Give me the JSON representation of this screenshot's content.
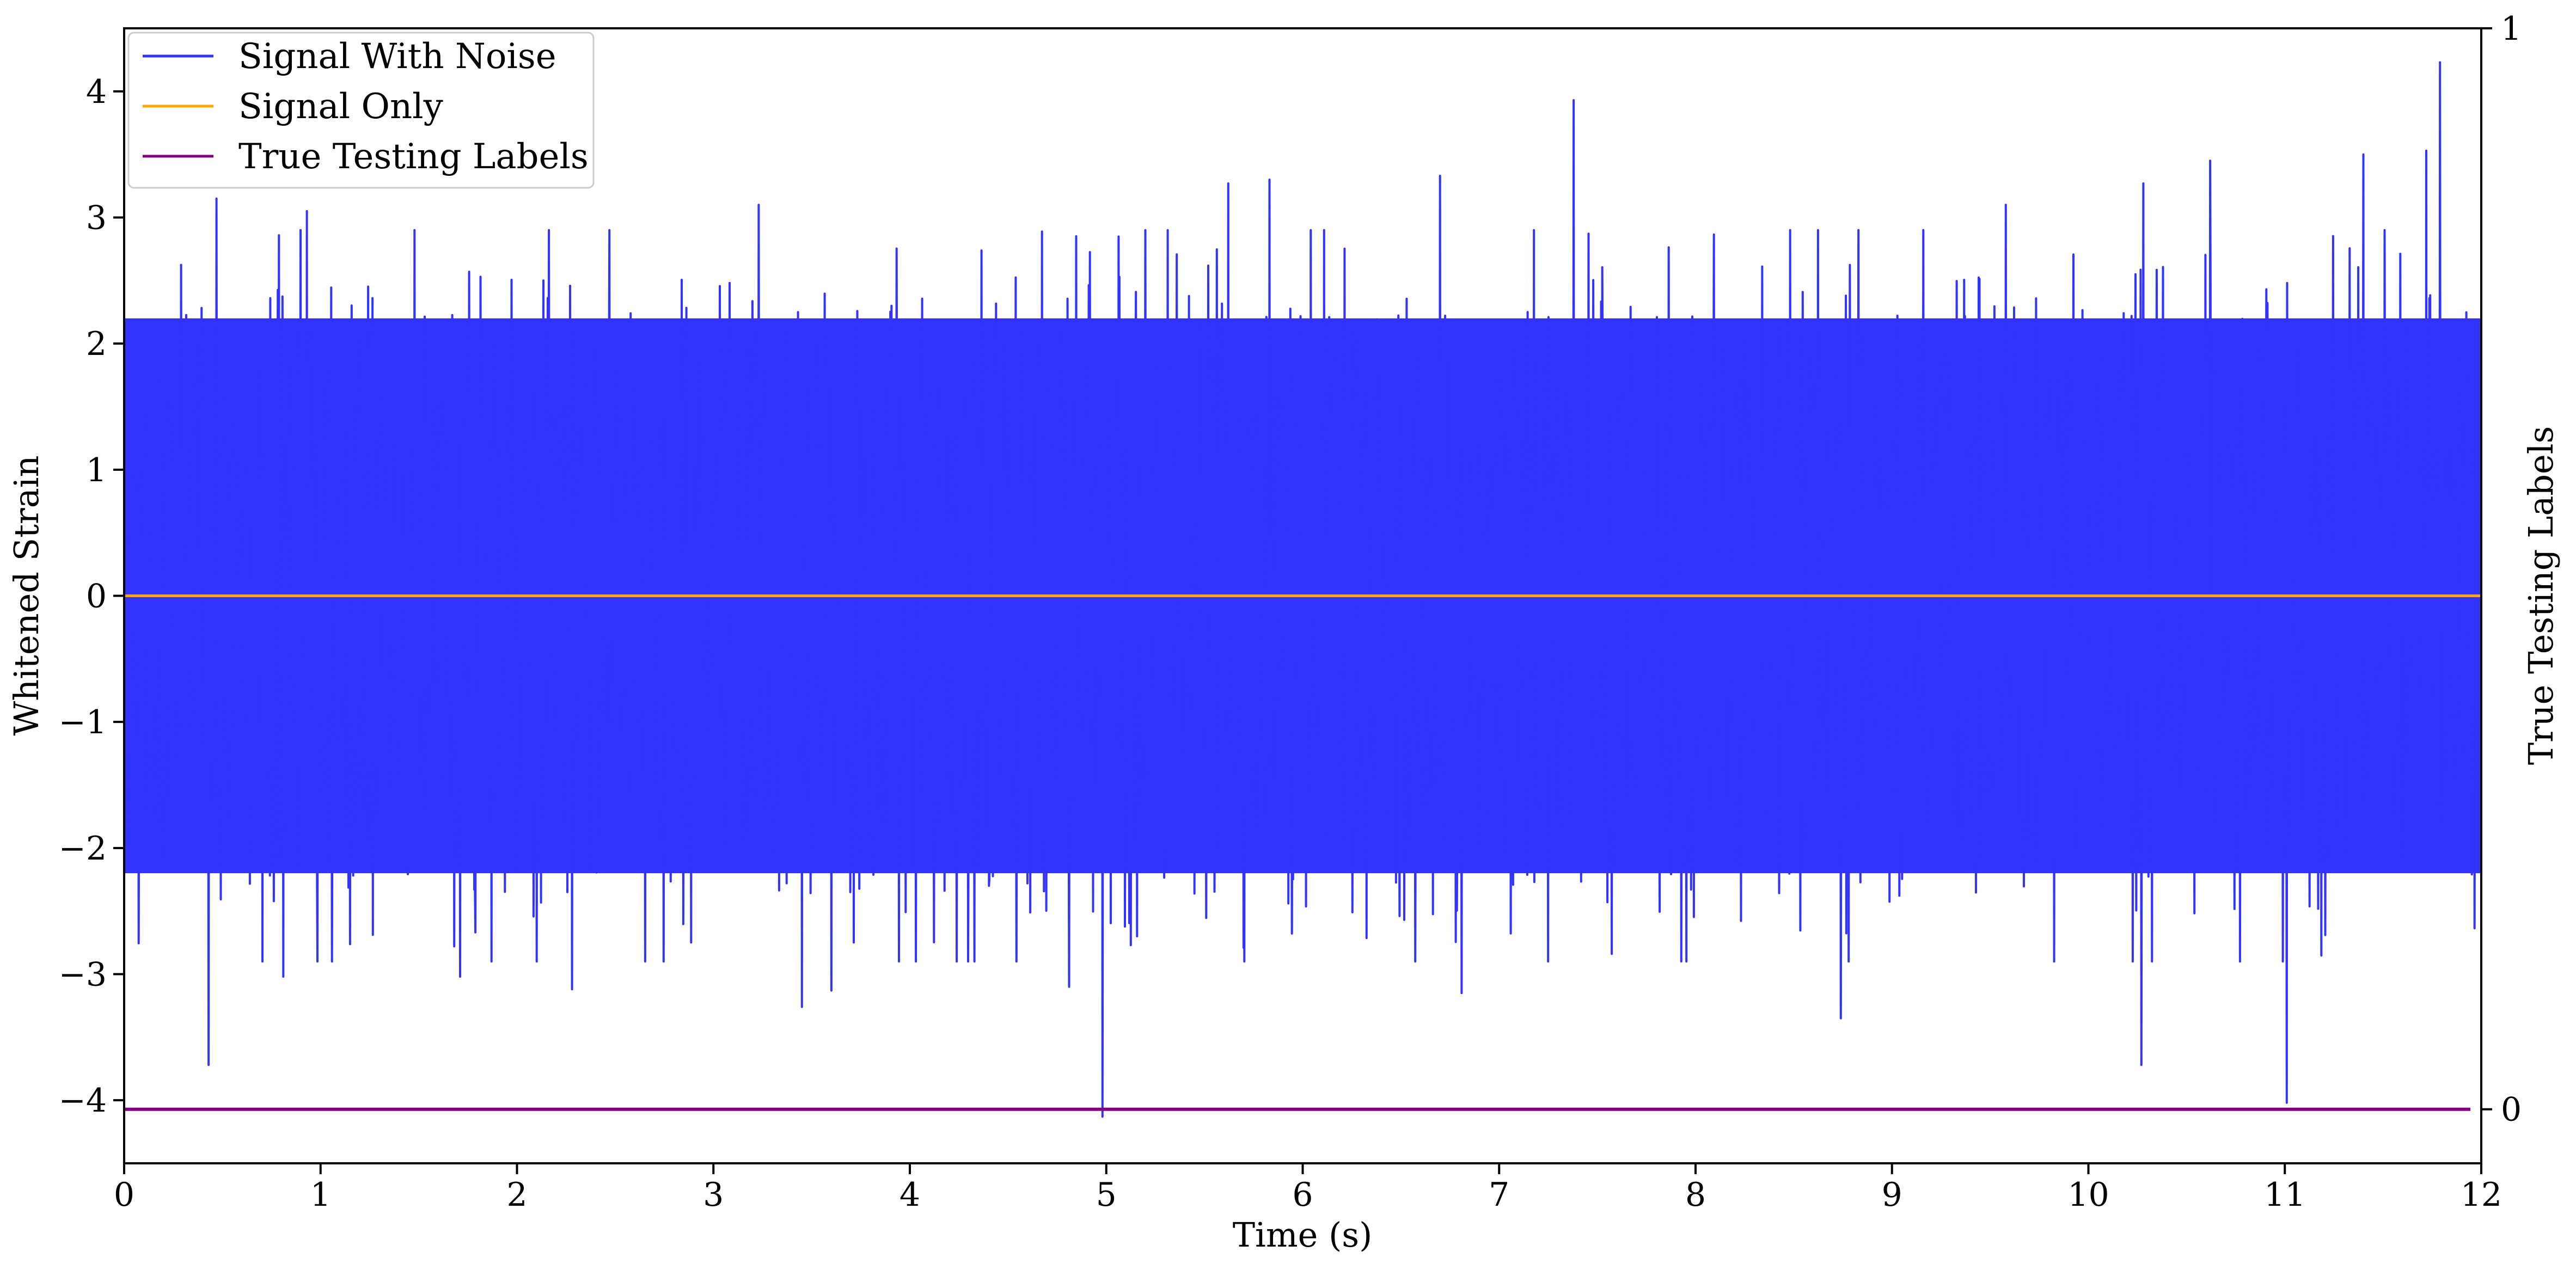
{
  "chart_data": {
    "type": "line",
    "title": "",
    "xlabel": "Time (s)",
    "ylabel": "Whitened Strain",
    "y2label": "True Testing Labels",
    "xlim": [
      0,
      12
    ],
    "ylim": [
      -4.5,
      4.5
    ],
    "y2lim": [
      -0.05,
      1.0
    ],
    "x_ticks": [
      0,
      1,
      2,
      3,
      4,
      5,
      6,
      7,
      8,
      9,
      10,
      11,
      12
    ],
    "y_ticks": [
      -4,
      -3,
      -2,
      -1,
      0,
      1,
      2,
      3,
      4
    ],
    "y_tick_labels": [
      "−4",
      "−3",
      "−2",
      "−1",
      "0",
      "1",
      "2",
      "3",
      "4"
    ],
    "y2_ticks": [
      0,
      1
    ],
    "y2_tick_labels": [
      "0",
      "1"
    ],
    "grid": false,
    "legend_position": "top-left",
    "series": [
      {
        "name": "Signal With Noise",
        "color": "#3333ff",
        "axis": "left",
        "x_range": [
          0,
          12
        ],
        "envelope_upper": 2.2,
        "envelope_lower": -2.2,
        "spikes": [
          {
            "x": 0.43,
            "y": -3.72
          },
          {
            "x": 0.47,
            "y": 3.15
          },
          {
            "x": 0.81,
            "y": -3.02
          },
          {
            "x": 0.93,
            "y": 3.05
          },
          {
            "x": 1.71,
            "y": -3.02
          },
          {
            "x": 2.28,
            "y": -3.12
          },
          {
            "x": 2.47,
            "y": 2.9
          },
          {
            "x": 3.23,
            "y": 3.1
          },
          {
            "x": 3.45,
            "y": -3.26
          },
          {
            "x": 3.6,
            "y": -3.13
          },
          {
            "x": 4.81,
            "y": -3.1
          },
          {
            "x": 4.98,
            "y": -4.13
          },
          {
            "x": 5.62,
            "y": 3.27
          },
          {
            "x": 5.83,
            "y": 3.3
          },
          {
            "x": 6.7,
            "y": 3.33
          },
          {
            "x": 6.81,
            "y": -3.15
          },
          {
            "x": 7.38,
            "y": 3.93
          },
          {
            "x": 8.74,
            "y": -3.35
          },
          {
            "x": 9.58,
            "y": 3.1
          },
          {
            "x": 10.27,
            "y": -3.72
          },
          {
            "x": 10.28,
            "y": 3.27
          },
          {
            "x": 10.62,
            "y": 3.45
          },
          {
            "x": 11.01,
            "y": -4.02
          },
          {
            "x": 11.4,
            "y": 3.5
          },
          {
            "x": 11.72,
            "y": 3.53
          },
          {
            "x": 11.79,
            "y": 4.23
          }
        ]
      },
      {
        "name": "Signal Only",
        "color": "#ffa500",
        "axis": "left",
        "x": [
          0,
          12
        ],
        "y": [
          0,
          0
        ]
      },
      {
        "name": "True Testing Labels",
        "color": "#800080",
        "axis": "right",
        "x": [
          0,
          12
        ],
        "y": [
          0,
          0
        ]
      }
    ]
  }
}
